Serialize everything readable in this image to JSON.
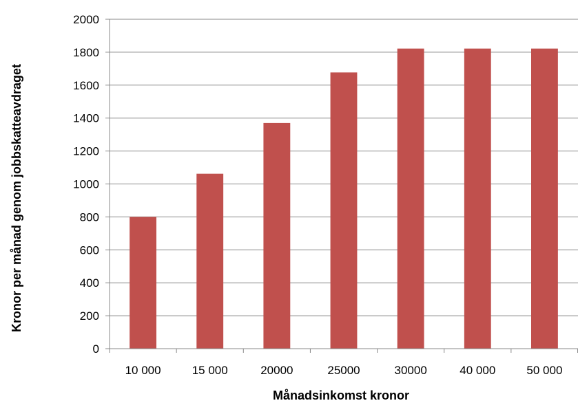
{
  "chart_data": {
    "type": "bar",
    "title": "",
    "xlabel": "Månadsinkomst kronor",
    "ylabel": "Kronor per månad genom jobbskatteavdraget",
    "categories": [
      "10 000",
      "15 000",
      "20000",
      "25000",
      "30000",
      "40 000",
      "50 000"
    ],
    "values": [
      800,
      1062,
      1370,
      1677,
      1822,
      1822,
      1822
    ],
    "ylim": [
      0,
      2000
    ],
    "yticks": [
      0,
      200,
      400,
      600,
      800,
      1000,
      1200,
      1400,
      1600,
      1800,
      2000
    ],
    "grid": true,
    "legend": "none",
    "colors": {
      "bar": "#c0504d",
      "grid": "#888888",
      "axis": "#888888"
    }
  }
}
